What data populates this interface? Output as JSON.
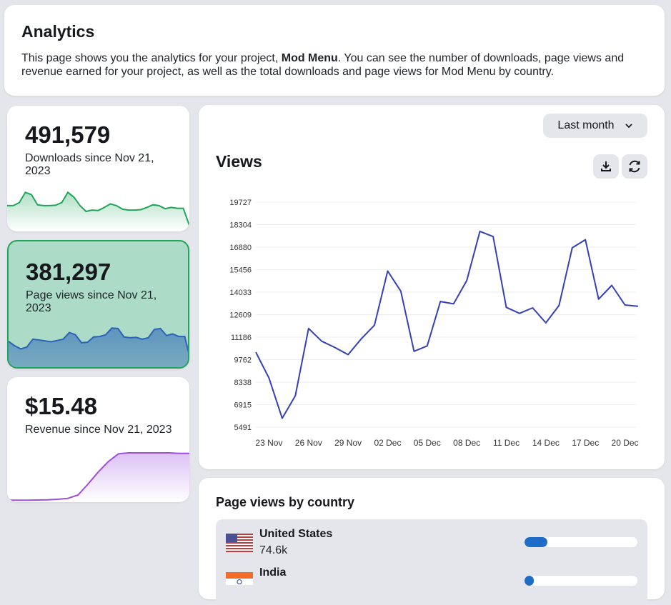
{
  "header": {
    "title": "Analytics",
    "desc_pre": "This page shows you the analytics for your project, ",
    "project": "Mod Menu",
    "desc_post": ". You can see the number of downloads, page views and revenue earned for your project, as well as the total downloads and page views for Mod Menu by country."
  },
  "stats": [
    {
      "value": "491,579",
      "label": "Downloads since Nov 21, 2023",
      "color": "#1fa45a",
      "spark": [
        0.55,
        0.55,
        0.62,
        0.85,
        0.8,
        0.57,
        0.55,
        0.55,
        0.56,
        0.62,
        0.85,
        0.74,
        0.55,
        0.42,
        0.45,
        0.44,
        0.51,
        0.59,
        0.55,
        0.47,
        0.45,
        0.45,
        0.46,
        0.51,
        0.57,
        0.55,
        0.48,
        0.51,
        0.49,
        0.49,
        0.1
      ]
    },
    {
      "value": "381,297",
      "label": "Page views since Nov 21, 2023",
      "color": "#2a63b8",
      "selected": true,
      "spark": [
        0.55,
        0.45,
        0.38,
        0.42,
        0.6,
        0.58,
        0.56,
        0.54,
        0.57,
        0.6,
        0.75,
        0.7,
        0.52,
        0.53,
        0.65,
        0.66,
        0.7,
        0.85,
        0.84,
        0.65,
        0.63,
        0.64,
        0.6,
        0.63,
        0.82,
        0.84,
        0.68,
        0.72,
        0.66,
        0.66,
        0.1
      ]
    },
    {
      "value": "$15.48",
      "label": "Revenue since Nov 21, 2023",
      "color": "#9b4fe0",
      "spark": [
        0.01,
        0.01,
        0.01,
        0.015,
        0.02,
        0.03,
        0.05,
        0.12,
        0.35,
        0.6,
        0.82,
        0.98,
        1,
        1,
        1,
        1,
        1,
        0.99,
        0.99
      ]
    }
  ],
  "views": {
    "range_label": "Last month",
    "title": "Views",
    "icons": {
      "download": "download-icon",
      "refresh": "refresh-icon"
    },
    "chart_data": {
      "type": "line",
      "color": "#3341b5",
      "ylim": [
        5491,
        19727
      ],
      "yticks": [
        "19727",
        "18304",
        "16880",
        "15456",
        "14033",
        "12609",
        "11186",
        "9762",
        "8338",
        "6915",
        "5491"
      ],
      "xticks": [
        "23 Nov",
        "26 Nov",
        "29 Nov",
        "02 Dec",
        "05 Dec",
        "08 Dec",
        "11 Dec",
        "14 Dec",
        "17 Dec",
        "20 Dec"
      ],
      "x": [
        "22 Nov",
        "23 Nov",
        "24 Nov",
        "25 Nov",
        "26 Nov",
        "27 Nov",
        "28 Nov",
        "29 Nov",
        "30 Nov",
        "01 Dec",
        "02 Dec",
        "03 Dec",
        "04 Dec",
        "05 Dec",
        "06 Dec",
        "07 Dec",
        "08 Dec",
        "09 Dec",
        "10 Dec",
        "11 Dec",
        "12 Dec",
        "13 Dec",
        "14 Dec",
        "15 Dec",
        "16 Dec",
        "17 Dec",
        "18 Dec",
        "19 Dec",
        "20 Dec",
        "21 Dec"
      ],
      "values": [
        10230,
        8600,
        6050,
        7480,
        11730,
        10930,
        10530,
        10080,
        11080,
        11940,
        15370,
        14090,
        10290,
        10630,
        13440,
        13290,
        14770,
        17880,
        17550,
        13070,
        12690,
        13040,
        12090,
        13190,
        16840,
        17350,
        13590,
        14460,
        13220,
        13140
      ]
    }
  },
  "countries": {
    "title": "Page views by country",
    "items": [
      {
        "name": "United States",
        "value": "74.6k",
        "share": 0.2
      },
      {
        "name": "India",
        "value": "",
        "share": 0.08
      }
    ]
  }
}
